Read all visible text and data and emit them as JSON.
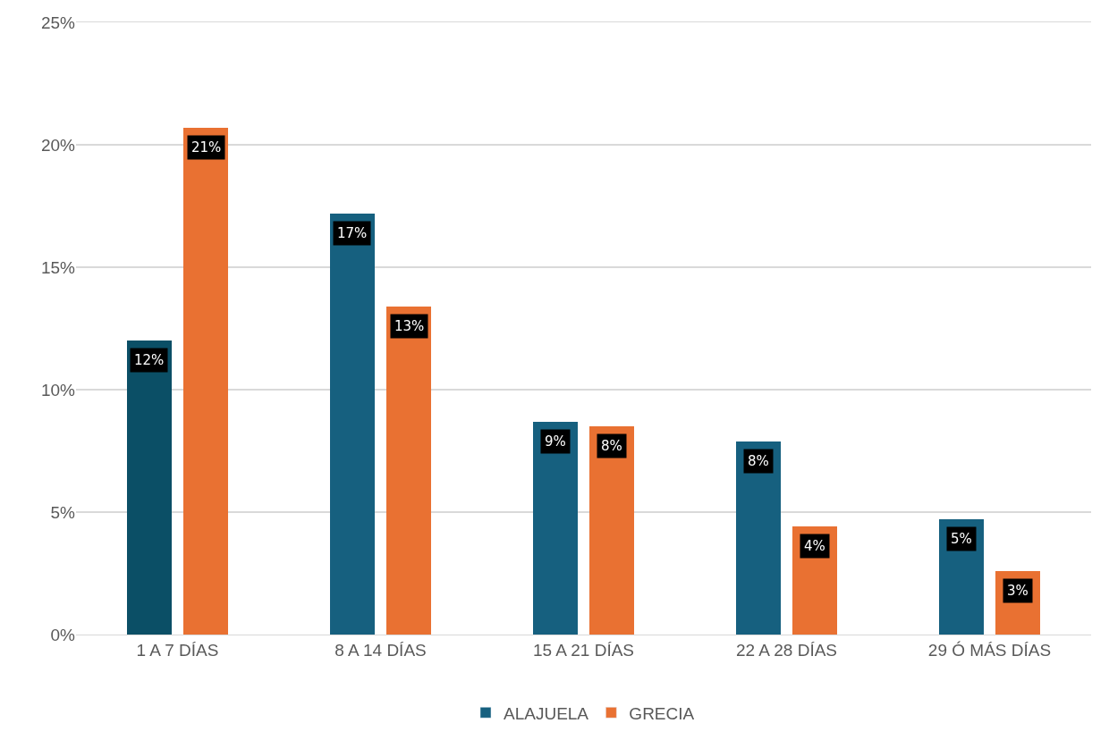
{
  "chart_data": {
    "type": "bar",
    "categories": [
      "1 A 7 DÍAS",
      "8 A 14 DÍAS",
      "15 A 21 DÍAS",
      "22 A 28 DÍAS",
      "29 Ó MÁS DÍAS"
    ],
    "series": [
      {
        "name": "ALAJUELA",
        "color": "#16607f",
        "colors": [
          "#0b4f66",
          "#16607f",
          "#16607f",
          "#16607f",
          "#16607f"
        ],
        "values": [
          12.0,
          17.2,
          8.7,
          7.9,
          4.7
        ],
        "value_labels": [
          "12%",
          "17%",
          "9%",
          "8%",
          "5%"
        ]
      },
      {
        "name": "GRECIA",
        "color": "#e97132",
        "values": [
          20.7,
          13.4,
          8.5,
          4.4,
          2.6
        ],
        "value_labels": [
          "21%",
          "13%",
          "8%",
          "4%",
          "3%"
        ]
      }
    ],
    "ylim": [
      0,
      25
    ],
    "yticks": [
      {
        "value": 0,
        "label": "0%"
      },
      {
        "value": 5,
        "label": "5%"
      },
      {
        "value": 10,
        "label": "10%"
      },
      {
        "value": 15,
        "label": "15%"
      },
      {
        "value": 20,
        "label": "20%"
      },
      {
        "value": 25,
        "label": "25%"
      }
    ],
    "grid": "y",
    "legend": "bottom"
  }
}
